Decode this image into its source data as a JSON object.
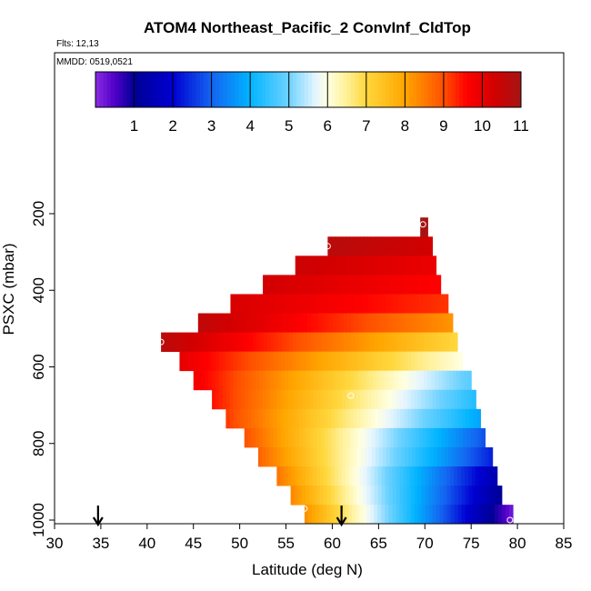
{
  "chart_data": {
    "type": "heatmap",
    "title": "ATOM4 Northeast_Pacific_2 ConvInf_CldTop",
    "flights_label": "Flts: 12,13",
    "dates_label": "MMDD: 0519,0521",
    "xlabel": "Latitude (deg N)",
    "ylabel": "PSXC (mbar)",
    "xlim": [
      30,
      85
    ],
    "ylim": [
      1000,
      0
    ],
    "x_ticks": [
      "30",
      "35",
      "40",
      "45",
      "50",
      "55",
      "60",
      "65",
      "70",
      "75",
      "80",
      "85"
    ],
    "y_ticks": [
      "200",
      "400",
      "600",
      "800",
      "1000"
    ],
    "colorbar": {
      "range": [
        0,
        11
      ],
      "ticks": [
        "1",
        "2",
        "3",
        "4",
        "5",
        "6",
        "7",
        "8",
        "9",
        "10",
        "11"
      ]
    },
    "rows": [
      {
        "p_top": 210,
        "p_bot": 260,
        "lat_start": 69.5,
        "lat_end": 70.3,
        "v_start": 11.0,
        "v_end": 11.0
      },
      {
        "p_top": 260,
        "p_bot": 310,
        "lat_start": 59.5,
        "lat_end": 70.8,
        "v_start": 10.7,
        "v_end": 10.3
      },
      {
        "p_top": 310,
        "p_bot": 360,
        "lat_start": 56.0,
        "lat_end": 71.2,
        "v_start": 10.4,
        "v_end": 9.9
      },
      {
        "p_top": 360,
        "p_bot": 410,
        "lat_start": 52.5,
        "lat_end": 71.7,
        "v_start": 10.3,
        "v_end": 9.6
      },
      {
        "p_top": 410,
        "p_bot": 460,
        "lat_start": 49.0,
        "lat_end": 72.5,
        "v_start": 10.2,
        "v_end": 9.2
      },
      {
        "p_top": 460,
        "p_bot": 510,
        "lat_start": 45.5,
        "lat_end": 73.0,
        "v_start": 10.6,
        "v_end": 8.2
      },
      {
        "p_top": 510,
        "p_bot": 560,
        "lat_start": 41.5,
        "lat_end": 73.5,
        "v_start": 10.7,
        "v_end": 7.0
      },
      {
        "p_top": 560,
        "p_bot": 610,
        "lat_start": 43.5,
        "lat_end": 74.0,
        "v_start": 10.0,
        "v_end": 6.0
      },
      {
        "p_top": 610,
        "p_bot": 660,
        "lat_start": 45.0,
        "lat_end": 75.0,
        "v_start": 9.8,
        "v_end": 4.8
      },
      {
        "p_top": 660,
        "p_bot": 710,
        "lat_start": 47.0,
        "lat_end": 75.5,
        "v_start": 9.5,
        "v_end": 4.3
      },
      {
        "p_top": 710,
        "p_bot": 760,
        "lat_start": 48.5,
        "lat_end": 76.0,
        "v_start": 9.2,
        "v_end": 3.8
      },
      {
        "p_top": 760,
        "p_bot": 810,
        "lat_start": 50.5,
        "lat_end": 76.5,
        "v_start": 9.0,
        "v_end": 2.8
      },
      {
        "p_top": 810,
        "p_bot": 860,
        "lat_start": 52.0,
        "lat_end": 77.3,
        "v_start": 8.8,
        "v_end": 2.3
      },
      {
        "p_top": 860,
        "p_bot": 910,
        "lat_start": 54.0,
        "lat_end": 77.8,
        "v_start": 8.6,
        "v_end": 1.4
      },
      {
        "p_top": 910,
        "p_bot": 960,
        "lat_start": 55.5,
        "lat_end": 78.3,
        "v_start": 8.4,
        "v_end": 1.0
      },
      {
        "p_top": 960,
        "p_bot": 1010,
        "lat_start": 57.0,
        "lat_end": 79.5,
        "v_start": 8.3,
        "v_end": 0.2
      }
    ],
    "markers": [
      {
        "lat": 69.8,
        "p": 228
      },
      {
        "lat": 59.5,
        "p": 285
      },
      {
        "lat": 41.5,
        "p": 535
      },
      {
        "lat": 62.0,
        "p": 675
      },
      {
        "lat": 57.0,
        "p": 970
      },
      {
        "lat": 79.2,
        "p": 1000
      }
    ],
    "arrows": [
      34.7,
      61.0
    ]
  }
}
